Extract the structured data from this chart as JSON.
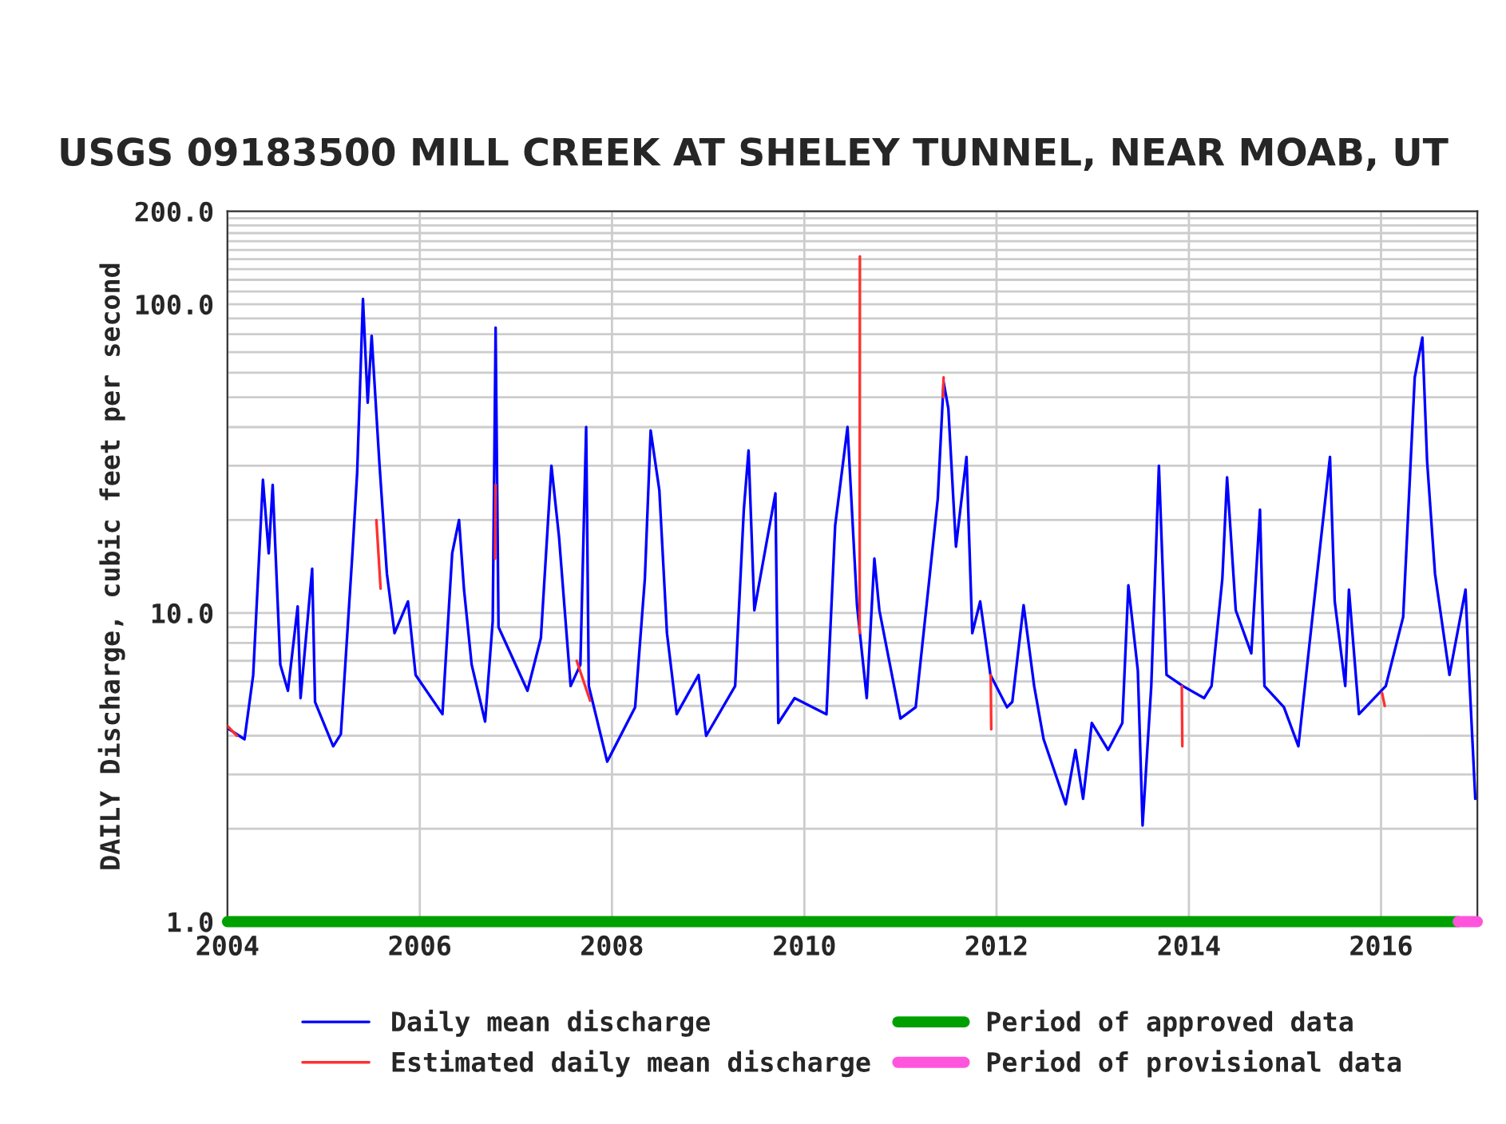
{
  "chart_data": {
    "type": "line",
    "title": "USGS 09183500 MILL CREEK AT SHELEY TUNNEL, NEAR MOAB, UT",
    "ylabel": "DAILY Discharge, cubic feet per second",
    "log": "y",
    "grid": true,
    "legend": "bottom",
    "line_style": "solid",
    "marker": "none",
    "xlim": [
      "2004-01-01",
      "2017-01-01"
    ],
    "xticks": [
      "2004",
      "2006",
      "2008",
      "2010",
      "2012",
      "2014",
      "2016"
    ],
    "ylim": [
      1,
      200
    ],
    "yticks": [
      {
        "value": 1,
        "label": "1.0"
      },
      {
        "value": 2,
        "label": null
      },
      {
        "value": 3,
        "label": null
      },
      {
        "value": 4,
        "label": null
      },
      {
        "value": 5,
        "label": null
      },
      {
        "value": 6,
        "label": null
      },
      {
        "value": 7,
        "label": null
      },
      {
        "value": 8,
        "label": null
      },
      {
        "value": 9,
        "label": null
      },
      {
        "value": 10,
        "label": "10.0"
      },
      {
        "value": 20,
        "label": null
      },
      {
        "value": 30,
        "label": null
      },
      {
        "value": 40,
        "label": null
      },
      {
        "value": 50,
        "label": null
      },
      {
        "value": 60,
        "label": null
      },
      {
        "value": 70,
        "label": null
      },
      {
        "value": 80,
        "label": null
      },
      {
        "value": 90,
        "label": null
      },
      {
        "value": 100,
        "label": "100.0"
      },
      {
        "value": 110,
        "label": null
      },
      {
        "value": 120,
        "label": null
      },
      {
        "value": 130,
        "label": null
      },
      {
        "value": 140,
        "label": null
      },
      {
        "value": 150,
        "label": null
      },
      {
        "value": 160,
        "label": null
      },
      {
        "value": 170,
        "label": null
      },
      {
        "value": 180,
        "label": null
      },
      {
        "value": 190,
        "label": null
      },
      {
        "value": 200,
        "label": "200.0"
      }
    ],
    "series": [
      {
        "name": "Daily mean discharge",
        "color": "#0000ff",
        "x": [
          "2004-01-08",
          "2004-03-06",
          "2004-04-08",
          "2004-05-15",
          "2004-06-06",
          "2004-06-21",
          "2004-07-20",
          "2004-08-18",
          "2004-09-24",
          "2004-10-05",
          "2004-11-18",
          "2004-11-29",
          "2005-02-06",
          "2005-03-07",
          "2005-04-20",
          "2005-05-08",
          "2005-05-30",
          "2005-06-17",
          "2005-07-02",
          "2005-07-31",
          "2005-08-29",
          "2005-09-27",
          "2005-11-17",
          "2005-12-16",
          "2006-03-28",
          "2006-05-04",
          "2006-05-30",
          "2006-06-18",
          "2006-07-17",
          "2006-09-06",
          "2006-10-05",
          "2006-10-16",
          "2006-10-27",
          "2007-02-14",
          "2007-04-06",
          "2007-05-16",
          "2007-06-14",
          "2007-07-28",
          "2007-09-03",
          "2007-09-25",
          "2007-10-05",
          "2007-12-14",
          "2008-03-29",
          "2008-05-05",
          "2008-05-27",
          "2008-06-29",
          "2008-07-28",
          "2008-09-03",
          "2008-11-25",
          "2008-12-24",
          "2009-04-13",
          "2009-05-16",
          "2009-06-03",
          "2009-06-25",
          "2009-09-13",
          "2009-09-24",
          "2009-11-25",
          "2010-03-26",
          "2010-04-28",
          "2010-06-14",
          "2010-07-20",
          "2010-07-31",
          "2010-08-26",
          "2010-09-24",
          "2010-10-13",
          "2011-01-01",
          "2011-02-28",
          "2011-04-23",
          "2011-05-23",
          "2011-06-14",
          "2011-07-02",
          "2011-07-31",
          "2011-09-09",
          "2011-10-01",
          "2011-10-31",
          "2011-12-09",
          "2012-02-10",
          "2012-03-01",
          "2012-04-13",
          "2012-05-23",
          "2012-06-28",
          "2012-09-20",
          "2012-10-27",
          "2012-11-25",
          "2012-12-28",
          "2013-02-28",
          "2013-04-23",
          "2013-05-16",
          "2013-06-21",
          "2013-07-09",
          "2013-08-11",
          "2013-09-09",
          "2013-10-08",
          "2013-12-09",
          "2014-02-28",
          "2014-03-28",
          "2014-05-08",
          "2014-05-26",
          "2014-06-28",
          "2014-08-26",
          "2014-09-28",
          "2014-10-15",
          "2014-12-28",
          "2015-02-21",
          "2015-03-29",
          "2015-05-08",
          "2015-06-21",
          "2015-07-09",
          "2015-08-18",
          "2015-09-01",
          "2015-10-09",
          "2016-01-19",
          "2016-03-25",
          "2016-05-08",
          "2016-06-06",
          "2016-06-24",
          "2016-07-24",
          "2016-09-17",
          "2016-11-17",
          "2016-11-29",
          "2016-12-24"
        ],
        "values": [
          4.2,
          3.9,
          6.3,
          27,
          15.6,
          26,
          6.8,
          5.6,
          10.5,
          5.3,
          13.9,
          5.15,
          3.7,
          4.05,
          15.6,
          28.5,
          104,
          48,
          79,
          31,
          13.4,
          8.6,
          10.9,
          6.3,
          4.7,
          15.6,
          20,
          11.9,
          6.8,
          4.45,
          9.4,
          84,
          9.0,
          5.6,
          8.3,
          30,
          17.6,
          5.8,
          6.8,
          40,
          5.8,
          3.3,
          4.95,
          12.9,
          39,
          25,
          8.6,
          4.7,
          6.3,
          4.0,
          5.8,
          21.6,
          33.6,
          10.2,
          24.4,
          4.4,
          5.3,
          4.7,
          19.2,
          40,
          10.6,
          8.6,
          5.3,
          15,
          10.2,
          4.55,
          4.95,
          13.4,
          23.5,
          56,
          46,
          16.4,
          32,
          8.6,
          10.9,
          6.3,
          4.95,
          5.15,
          10.6,
          5.8,
          3.9,
          2.4,
          3.6,
          2.5,
          4.4,
          3.6,
          4.4,
          12.3,
          6.5,
          2.05,
          5.8,
          30,
          6.3,
          5.8,
          5.3,
          5.8,
          12.9,
          27.5,
          10.2,
          7.4,
          21.6,
          5.8,
          4.95,
          3.7,
          7.1,
          14.6,
          32,
          10.9,
          5.8,
          11.9,
          4.7,
          5.8,
          9.7,
          58,
          78,
          31,
          13.4,
          6.3,
          11.9,
          6.8,
          2.5
        ]
      },
      {
        "name": "Estimated daily mean discharge",
        "color": "#ff3030",
        "x": [
          "2004-01-02",
          "2004-02-06",
          "2004-03-01",
          "2005-07-20",
          "2005-08-05",
          "2005-08-20",
          "2006-10-14",
          "2006-10-16",
          "2006-10-18",
          "2007-08-20",
          "2007-10-10",
          "2007-10-20",
          "2010-07-30",
          "2010-07-31",
          "2010-08-01",
          "2011-06-12",
          "2011-06-14",
          "2011-06-16",
          "2011-12-10",
          "2011-12-12",
          "2011-12-14",
          "2013-12-05",
          "2013-12-07",
          "2013-12-09",
          "2016-01-05",
          "2016-01-15"
        ],
        "values": [
          4.3,
          4.0,
          null,
          20,
          12,
          null,
          15,
          26,
          null,
          7.0,
          5.2,
          null,
          8.6,
          143,
          null,
          50,
          58,
          null,
          6.3,
          4.2,
          null,
          5.8,
          3.7,
          null,
          5.5,
          5.0
        ]
      },
      {
        "name": "Period of approved data",
        "type": "step",
        "color": "#00a000",
        "x": [
          "2004-01-01",
          "2016-10-20"
        ],
        "values": [
          1,
          1
        ]
      },
      {
        "name": "Period of provisional data",
        "type": "step",
        "color": "#ff55dd",
        "x": [
          "2016-10-20",
          "2017-01-01"
        ],
        "values": [
          1,
          1
        ]
      }
    ]
  }
}
